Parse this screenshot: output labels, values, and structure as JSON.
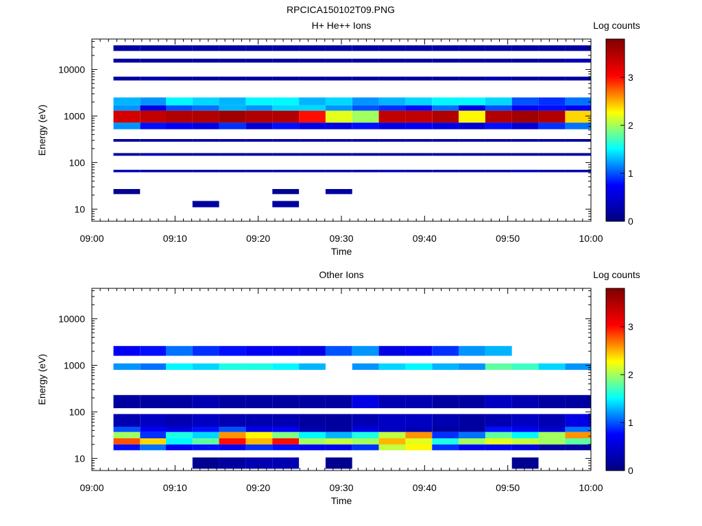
{
  "figure_title": "RPCICA150102T09.PNG",
  "colormap": {
    "name": "jet",
    "stops": [
      "#000080",
      "#0000ff",
      "#00ffff",
      "#ffff00",
      "#ff0000",
      "#800000"
    ]
  },
  "chart_data": [
    {
      "type": "heatmap",
      "title": "H+ He++ Ions",
      "xlabel": "Time",
      "ylabel": "Energy (eV)",
      "colorbar_label": "Log counts",
      "x_ticks": [
        "09:00",
        "09:10",
        "09:20",
        "09:30",
        "09:40",
        "09:50",
        "10:00"
      ],
      "y_ticks": [
        "10",
        "100",
        "1000",
        "10000"
      ],
      "y_scale": "log",
      "ylim": [
        5.5,
        45000
      ],
      "colorbar_ticks": [
        "0",
        "1",
        "2",
        "3"
      ],
      "crange": [
        0,
        3.8
      ],
      "time_bins_min": [
        [
          2.6,
          5.8
        ],
        [
          5.8,
          8.9
        ],
        [
          8.9,
          12.1
        ],
        [
          12.1,
          15.3
        ],
        [
          15.3,
          18.5
        ],
        [
          18.5,
          21.7
        ],
        [
          21.7,
          24.9
        ],
        [
          24.9,
          28.1
        ],
        [
          28.1,
          31.3
        ],
        [
          31.3,
          34.5
        ],
        [
          34.5,
          37.7
        ],
        [
          37.7,
          40.9
        ],
        [
          40.9,
          44.1
        ],
        [
          44.1,
          47.3
        ],
        [
          47.3,
          50.5
        ],
        [
          50.5,
          53.7
        ],
        [
          53.7,
          56.9
        ],
        [
          56.9,
          60.0
        ]
      ],
      "cells": [
        {
          "e": [
            720,
            1300
          ],
          "v": [
            3.3,
            3.4,
            3.5,
            3.5,
            3.6,
            3.5,
            3.5,
            3.0,
            2.2,
            2.0,
            3.4,
            3.4,
            3.5,
            2.3,
            3.5,
            3.6,
            3.5,
            2.4
          ]
        },
        {
          "e": [
            1300,
            1700
          ],
          "v": [
            1.2,
            0.6,
            1.0,
            1.1,
            1.3,
            1.2,
            1.4,
            1.4,
            1.2,
            1.0,
            0.9,
            0.8,
            1.1,
            0.6,
            1.0,
            0.7,
            0.8,
            0.7
          ]
        },
        {
          "e": [
            1700,
            2500
          ],
          "v": [
            1.3,
            1.2,
            1.5,
            1.4,
            1.3,
            1.5,
            1.5,
            1.3,
            1.4,
            1.2,
            1.3,
            1.4,
            1.5,
            1.5,
            1.4,
            1.0,
            0.9,
            1.1
          ]
        },
        {
          "e": [
            520,
            720
          ],
          "v": [
            1.2,
            0.8,
            0.7,
            0.6,
            0.9,
            0.5,
            0.8,
            0.6,
            0.6,
            0.8,
            0.6,
            0.7,
            0.6,
            0.5,
            0.8,
            0.5,
            0.9,
            1.1
          ]
        },
        {
          "e": [
            62,
            70
          ],
          "v": [
            0.3,
            0.2,
            0.2,
            0.2,
            0.2,
            0.2,
            0.2,
            0.2,
            0.2,
            0.2,
            0.3,
            0.2,
            0.2,
            0.2,
            0.2,
            0.3,
            0.2,
            0.2
          ]
        },
        {
          "e": [
            140,
            160
          ],
          "v": [
            0.2,
            0.3,
            0.2,
            0.2,
            0.2,
            0.2,
            0.2,
            0.2,
            0.2,
            0.2,
            0.2,
            0.2,
            0.2,
            0.2,
            0.2,
            0.2,
            0.2,
            0.2
          ]
        },
        {
          "e": [
            280,
            320
          ],
          "v": [
            0.2,
            0.2,
            0.2,
            0.2,
            0.2,
            0.2,
            0.2,
            0.2,
            0.2,
            0.2,
            0.2,
            0.2,
            0.2,
            0.2,
            0.2,
            0.2,
            0.2,
            0.2
          ]
        },
        {
          "e": [
            5800,
            7000
          ],
          "v": [
            0.2,
            0.3,
            0.2,
            0.2,
            0.2,
            0.2,
            0.2,
            0.2,
            0.2,
            0.2,
            0.2,
            0.2,
            0.2,
            0.2,
            0.3,
            0.2,
            0.2,
            0.2
          ]
        },
        {
          "e": [
            14000,
            17000
          ],
          "v": [
            0.2,
            0.2,
            0.2,
            0.2,
            0.2,
            0.2,
            0.2,
            0.2,
            0.2,
            0.2,
            0.2,
            0.2,
            0.2,
            0.2,
            0.2,
            0.2,
            0.2,
            0.3
          ]
        },
        {
          "e": [
            25000,
            33000
          ],
          "v": [
            0.2,
            0.2,
            0.2,
            0.2,
            0.2,
            0.2,
            0.2,
            0.2,
            0.2,
            0.2,
            0.2,
            0.2,
            0.2,
            0.2,
            0.2,
            0.2,
            0.2,
            0.2
          ]
        },
        {
          "e": [
            21,
            27
          ],
          "v": [
            0.1,
            null,
            null,
            null,
            null,
            null,
            0.1,
            null,
            0.2,
            null,
            null,
            null,
            null,
            null,
            null,
            null,
            null,
            null
          ]
        },
        {
          "e": [
            11,
            15
          ],
          "v": [
            null,
            null,
            null,
            0.2,
            null,
            null,
            0.2,
            null,
            null,
            null,
            null,
            null,
            null,
            null,
            null,
            null,
            null,
            null
          ]
        }
      ]
    },
    {
      "type": "heatmap",
      "title": "Other Ions",
      "xlabel": "Time",
      "ylabel": "Energy (eV)",
      "colorbar_label": "Log counts",
      "x_ticks": [
        "09:00",
        "09:10",
        "09:20",
        "09:30",
        "09:40",
        "09:50",
        "10:00"
      ],
      "y_ticks": [
        "10",
        "100",
        "1000",
        "10000"
      ],
      "y_scale": "log",
      "ylim": [
        5.5,
        45000
      ],
      "colorbar_ticks": [
        "0",
        "1",
        "2",
        "3"
      ],
      "crange": [
        0,
        3.8
      ],
      "time_bins_min": [
        [
          2.6,
          5.8
        ],
        [
          5.8,
          8.9
        ],
        [
          8.9,
          12.1
        ],
        [
          12.1,
          15.3
        ],
        [
          15.3,
          18.5
        ],
        [
          18.5,
          21.7
        ],
        [
          21.7,
          24.9
        ],
        [
          24.9,
          28.1
        ],
        [
          28.1,
          31.3
        ],
        [
          31.3,
          34.5
        ],
        [
          34.5,
          37.7
        ],
        [
          37.7,
          40.9
        ],
        [
          40.9,
          44.1
        ],
        [
          44.1,
          47.3
        ],
        [
          47.3,
          50.5
        ],
        [
          50.5,
          53.7
        ],
        [
          53.7,
          56.9
        ],
        [
          56.9,
          60.0
        ]
      ],
      "cells": [
        {
          "e": [
            800,
            1100
          ],
          "v": [
            1.2,
            1.1,
            1.5,
            1.4,
            1.6,
            1.6,
            1.5,
            1.3,
            null,
            1.2,
            1.4,
            1.5,
            1.3,
            1.2,
            1.8,
            1.7,
            1.4,
            1.2
          ]
        },
        {
          "e": [
            1600,
            2600
          ],
          "v": [
            0.7,
            0.8,
            1.1,
            0.9,
            0.8,
            0.7,
            0.7,
            0.6,
            1.0,
            1.2,
            0.6,
            0.7,
            0.9,
            1.2,
            1.3,
            null,
            null,
            null
          ]
        },
        {
          "e": [
            15,
            20
          ],
          "v": [
            0.8,
            1.1,
            0.7,
            0.8,
            0.7,
            0.9,
            0.8,
            0.7,
            0.7,
            0.9,
            2.1,
            2.3,
            0.9,
            0.7,
            0.7,
            0.6,
            0.2,
            0.2
          ]
        },
        {
          "e": [
            20,
            27
          ],
          "v": [
            2.8,
            2.4,
            1.5,
            1.8,
            3.0,
            2.5,
            3.0,
            2.0,
            2.1,
            2.0,
            2.5,
            2.2,
            1.6,
            2.0,
            2.2,
            2.1,
            2.0,
            1.8
          ]
        },
        {
          "e": [
            27,
            37
          ],
          "v": [
            2.0,
            0.9,
            1.6,
            1.4,
            2.6,
            2.3,
            1.9,
            1.5,
            1.3,
            1.6,
            2.1,
            2.6,
            0.9,
            1.1,
            1.8,
            1.5,
            2.0,
            2.6
          ]
        },
        {
          "e": [
            37,
            48
          ],
          "v": [
            1.0,
            0.7,
            0.6,
            0.8,
            1.0,
            0.6,
            0.7,
            0.3,
            0.2,
            0.6,
            0.4,
            0.3,
            0.2,
            0.2,
            0.8,
            0.7,
            0.5,
            1.1
          ]
        },
        {
          "e": [
            48,
            90
          ],
          "v": [
            0.3,
            0.4,
            0.3,
            0.4,
            0.3,
            0.3,
            0.3,
            0.2,
            0.2,
            0.3,
            0.4,
            0.4,
            0.3,
            0.2,
            0.3,
            0.4,
            0.3,
            0.6
          ]
        },
        {
          "e": [
            120,
            230
          ],
          "v": [
            0.2,
            0.2,
            0.2,
            0.3,
            0.2,
            0.2,
            0.2,
            0.2,
            0.2,
            0.6,
            0.3,
            0.3,
            0.2,
            0.2,
            0.4,
            0.3,
            0.2,
            0.2
          ]
        },
        {
          "e": [
            6,
            10.5
          ],
          "v": [
            null,
            null,
            null,
            0.1,
            0.2,
            0.3,
            0.3,
            null,
            0.1,
            null,
            null,
            null,
            null,
            null,
            null,
            0.1,
            null,
            null
          ]
        }
      ]
    }
  ]
}
